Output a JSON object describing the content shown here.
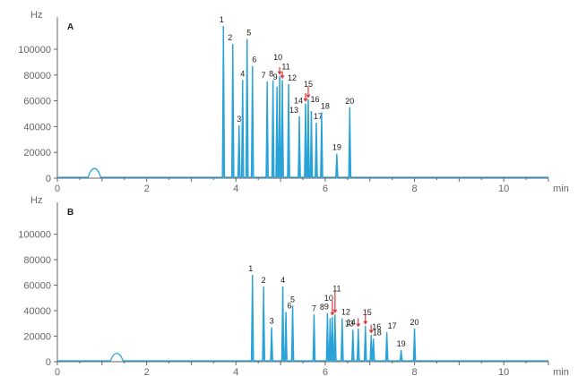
{
  "colors": {
    "trace": "#29a3d8",
    "arrow": "#d93b3b",
    "axis": "#666666",
    "text": "#1a1a1a"
  },
  "chart_data": [
    {
      "type": "line",
      "panel_label": "A",
      "ylabel": "Hz",
      "xlabel": "min",
      "xlim": [
        0,
        11
      ],
      "ylim": [
        0,
        125000
      ],
      "xticks": [
        0,
        2,
        4,
        6,
        8,
        10
      ],
      "xtick_labels": [
        "0",
        "2",
        "4",
        "6",
        "8",
        "10"
      ],
      "yticks": [
        0,
        20000,
        40000,
        60000,
        80000,
        100000
      ],
      "ytick_labels": [
        "0",
        "20000",
        "40000",
        "60000",
        "80000",
        "100000"
      ],
      "baseline_bumps": [
        {
          "x": 0.83,
          "y": 7500
        }
      ],
      "peaks": [
        {
          "label": "1",
          "x": 3.72,
          "y": 118000
        },
        {
          "label": "2",
          "x": 3.93,
          "y": 104000
        },
        {
          "label": "3",
          "x": 4.07,
          "y": 41000
        },
        {
          "label": "4",
          "x": 4.15,
          "y": 76000
        },
        {
          "label": "5",
          "x": 4.25,
          "y": 108000
        },
        {
          "label": "6",
          "x": 4.37,
          "y": 87000
        },
        {
          "label": "7",
          "x": 4.7,
          "y": 75000
        },
        {
          "label": "8",
          "x": 4.83,
          "y": 76000
        },
        {
          "label": "9",
          "x": 4.92,
          "y": 71000
        },
        {
          "label": "10",
          "x": 4.98,
          "y": 79000
        },
        {
          "label": "11",
          "x": 5.04,
          "y": 76000
        },
        {
          "label": "12",
          "x": 5.18,
          "y": 73000
        },
        {
          "label": "13",
          "x": 5.42,
          "y": 48000
        },
        {
          "label": "14",
          "x": 5.56,
          "y": 58000
        },
        {
          "label": "15",
          "x": 5.62,
          "y": 61000
        },
        {
          "label": "16",
          "x": 5.69,
          "y": 52000
        },
        {
          "label": "17",
          "x": 5.8,
          "y": 43000
        },
        {
          "label": "18",
          "x": 5.92,
          "y": 51000
        },
        {
          "label": "19",
          "x": 6.26,
          "y": 19000
        },
        {
          "label": "20",
          "x": 6.55,
          "y": 55000
        }
      ],
      "arrows": [
        {
          "x": 4.98,
          "from_y": 86000,
          "to_y": 80000
        },
        {
          "x": 5.04,
          "from_y": 83000,
          "to_y": 77000
        },
        {
          "x": 5.56,
          "from_y": 66000,
          "to_y": 59000
        },
        {
          "x": 5.62,
          "from_y": 71000,
          "to_y": 62000
        }
      ]
    },
    {
      "type": "line",
      "panel_label": "B",
      "ylabel": "Hz",
      "xlabel": "min",
      "xlim": [
        0,
        11
      ],
      "ylim": [
        0,
        125000
      ],
      "xticks": [
        0,
        2,
        4,
        6,
        8,
        10
      ],
      "xtick_labels": [
        "0",
        "2",
        "4",
        "6",
        "8",
        "10"
      ],
      "yticks": [
        0,
        20000,
        40000,
        60000,
        80000,
        100000
      ],
      "ytick_labels": [
        "0",
        "20000",
        "40000",
        "60000",
        "80000",
        "100000"
      ],
      "baseline_bumps": [
        {
          "x": 1.33,
          "y": 6500
        }
      ],
      "peaks": [
        {
          "label": "1",
          "x": 4.37,
          "y": 68000
        },
        {
          "label": "2",
          "x": 4.62,
          "y": 59000
        },
        {
          "label": "3",
          "x": 4.8,
          "y": 27000
        },
        {
          "label": "4",
          "x": 5.05,
          "y": 59000
        },
        {
          "label": "5",
          "x": 5.27,
          "y": 44000
        },
        {
          "label": "6",
          "x": 5.12,
          "y": 39000
        },
        {
          "label": "7",
          "x": 5.75,
          "y": 37000
        },
        {
          "label": "8",
          "x": 6.05,
          "y": 38000
        },
        {
          "label": "9",
          "x": 6.11,
          "y": 34000
        },
        {
          "label": "10",
          "x": 6.16,
          "y": 35000
        },
        {
          "label": "11",
          "x": 6.22,
          "y": 37000
        },
        {
          "label": "12",
          "x": 6.38,
          "y": 34000
        },
        {
          "label": "13",
          "x": 6.62,
          "y": 25000
        },
        {
          "label": "14",
          "x": 6.74,
          "y": 26000
        },
        {
          "label": "15",
          "x": 6.9,
          "y": 28000
        },
        {
          "label": "16",
          "x": 7.03,
          "y": 21000
        },
        {
          "label": "17",
          "x": 7.38,
          "y": 23000
        },
        {
          "label": "18",
          "x": 7.08,
          "y": 18000
        },
        {
          "label": "19",
          "x": 7.7,
          "y": 9000
        },
        {
          "label": "20",
          "x": 8.0,
          "y": 26000
        }
      ],
      "arrows": [
        {
          "x": 6.16,
          "from_y": 48000,
          "to_y": 36000
        },
        {
          "x": 6.22,
          "from_y": 55000,
          "to_y": 38000
        },
        {
          "x": 6.74,
          "from_y": 34000,
          "to_y": 27000
        },
        {
          "x": 6.9,
          "from_y": 38000,
          "to_y": 29000
        },
        {
          "x": 7.03,
          "from_y": 29000,
          "to_y": 22000
        }
      ]
    }
  ]
}
